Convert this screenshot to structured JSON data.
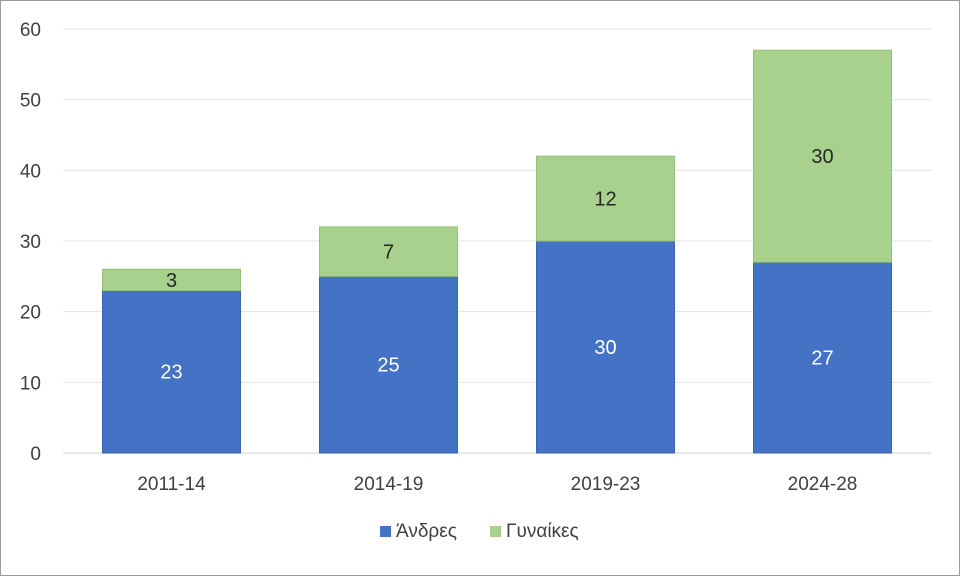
{
  "chart_data": {
    "type": "bar",
    "stacked": true,
    "categories": [
      "2011-14",
      "2014-19",
      "2019-23",
      "2024-28"
    ],
    "series": [
      {
        "name": "Άνδρες",
        "values": [
          23,
          25,
          30,
          27
        ],
        "color": "#4472C4"
      },
      {
        "name": "Γυναίκες",
        "values": [
          3,
          7,
          12,
          30
        ],
        "color": "#A9D18E"
      }
    ],
    "title": "",
    "xlabel": "",
    "ylabel": "",
    "ylim": [
      0,
      60
    ],
    "yticks": [
      0,
      10,
      20,
      30,
      40,
      50,
      60
    ],
    "grid": true,
    "legend": "bottom"
  }
}
